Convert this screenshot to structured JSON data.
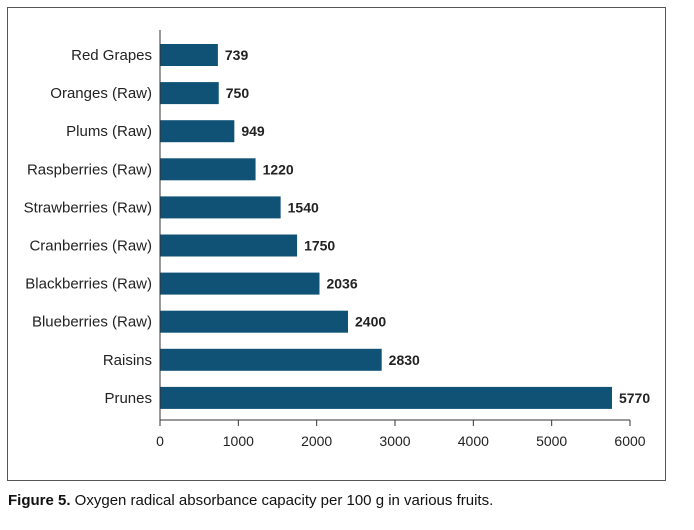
{
  "chart_data": {
    "type": "bar",
    "orientation": "horizontal",
    "categories": [
      "Red Grapes",
      "Oranges (Raw)",
      "Plums (Raw)",
      "Raspberries (Raw)",
      "Strawberries (Raw)",
      "Cranberries (Raw)",
      "Blackberries (Raw)",
      "Blueberries (Raw)",
      "Raisins",
      "Prunes"
    ],
    "values": [
      739,
      750,
      949,
      1220,
      1540,
      1750,
      2036,
      2400,
      2830,
      5770
    ],
    "value_labels": [
      "739",
      "750",
      "949",
      "1220",
      "1540",
      "1750",
      "2036",
      "2400",
      "2830",
      "5770"
    ],
    "xlim": [
      0,
      6000
    ],
    "xticks": [
      0,
      1000,
      2000,
      3000,
      4000,
      5000,
      6000
    ],
    "xtick_labels": [
      "0",
      "1000",
      "2000",
      "3000",
      "4000",
      "5000",
      "6000"
    ],
    "title": "",
    "xlabel": "",
    "ylabel": "",
    "grid": false,
    "bar_color": "#0f5276"
  },
  "caption": {
    "lead": "Figure 5.",
    "text": " Oxygen radical absorbance capacity per 100 g in various fruits."
  }
}
